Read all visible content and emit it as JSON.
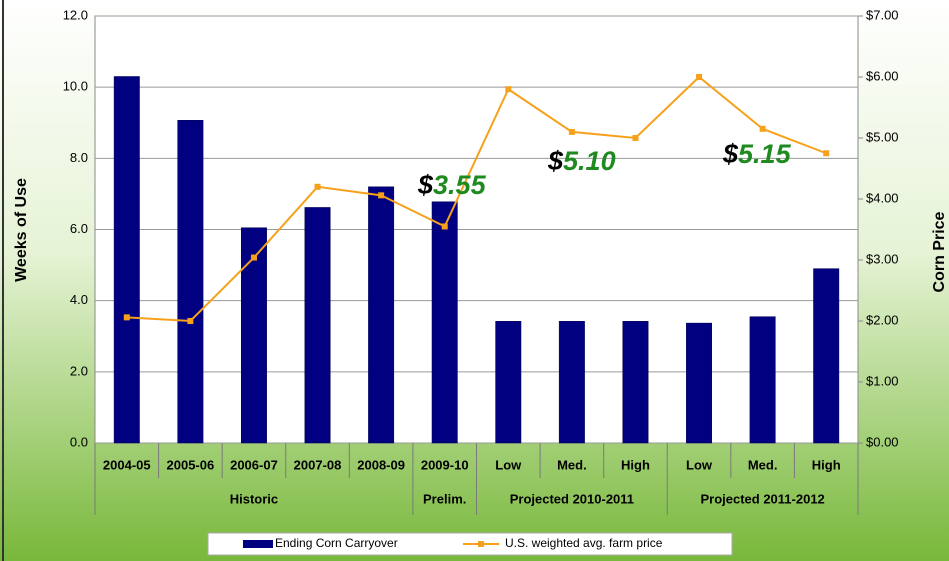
{
  "chart_data": {
    "type": "bar",
    "y_label": "Weeks of Use",
    "y2_label": "Corn Price",
    "categories": [
      "2004-05",
      "2005-06",
      "2006-07",
      "2007-08",
      "2008-09",
      "2009-10",
      "Low",
      "Med.",
      "High",
      "Low",
      "Med.",
      "High"
    ],
    "groups": [
      {
        "label": "Historic",
        "span": 5
      },
      {
        "label": "Prelim.",
        "span": 1
      },
      {
        "label": "Projected  2010-2011",
        "span": 3
      },
      {
        "label": "Projected 2011-2012",
        "span": 3
      }
    ],
    "series": [
      {
        "name": "Ending Corn Carryover",
        "color": "#000080",
        "values": [
          10.3,
          9.07,
          6.05,
          6.62,
          7.2,
          6.78,
          3.42,
          3.42,
          3.42,
          3.37,
          3.55,
          4.9
        ]
      },
      {
        "name": "U.S. weighted avg. farm price",
        "color": "#f7a11a",
        "type": "line",
        "axis": "y2",
        "values": [
          2.06,
          2.0,
          3.04,
          4.2,
          4.06,
          3.55,
          5.8,
          5.1,
          5.0,
          6.0,
          5.15,
          4.75
        ]
      }
    ],
    "ylim": [
      0,
      12
    ],
    "yticks": [
      {
        "value": 0,
        "label": "0.0"
      },
      {
        "value": 2,
        "label": "2.0"
      },
      {
        "value": 4,
        "label": "4.0"
      },
      {
        "value": 6,
        "label": "6.0"
      },
      {
        "value": 8,
        "label": "8.0"
      },
      {
        "value": 10,
        "label": "10.0"
      },
      {
        "value": 12,
        "label": "12.0"
      }
    ],
    "y2lim": [
      0,
      7
    ],
    "y2ticks": [
      {
        "value": 0,
        "label": "$0.00"
      },
      {
        "value": 1,
        "label": "$1.00"
      },
      {
        "value": 2,
        "label": "$2.00"
      },
      {
        "value": 3,
        "label": "$3.00"
      },
      {
        "value": 4,
        "label": "$4.00"
      },
      {
        "value": 5,
        "label": "$5.00"
      },
      {
        "value": 6,
        "label": "$6.00"
      },
      {
        "value": 7,
        "label": "$7.00"
      }
    ],
    "annotations": [
      "$3.55",
      "$5.10",
      "$5.15"
    ],
    "grid": true,
    "legend": "bottom"
  }
}
